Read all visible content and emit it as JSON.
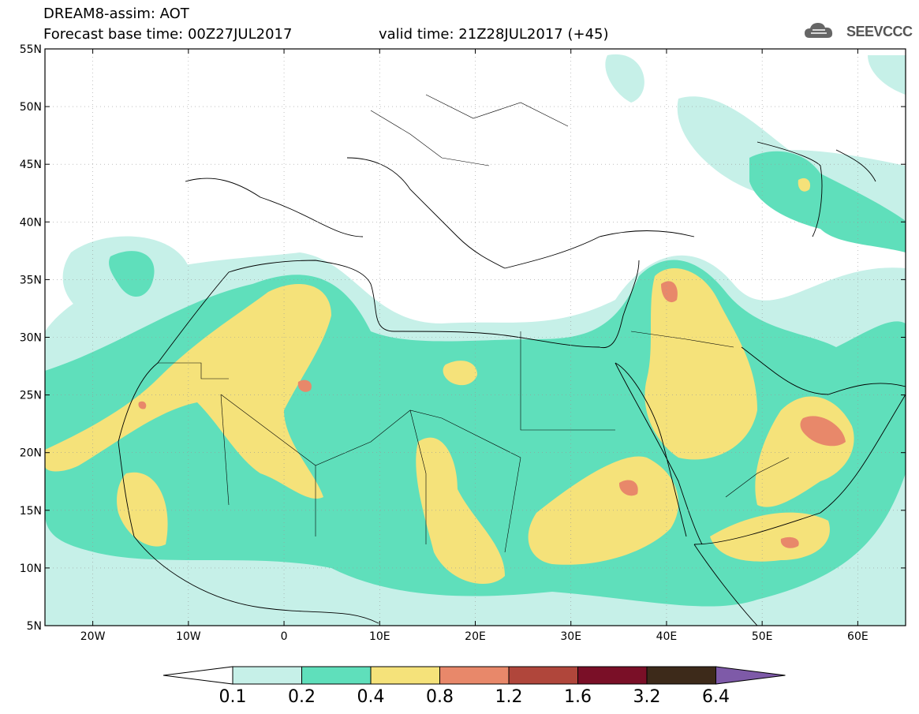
{
  "header": {
    "title": "DREAM8-assim: AOT",
    "forecast_base": "Forecast base time: 00Z27JUL2017",
    "valid_time": "valid time: 21Z28JUL2017 (+45)",
    "logo_text": "SEEVCCC",
    "logo_icon": "cloud-icon"
  },
  "axes": {
    "lat_labels": [
      "55N",
      "50N",
      "45N",
      "40N",
      "35N",
      "30N",
      "25N",
      "20N",
      "15N",
      "10N",
      "5N"
    ],
    "lon_labels": [
      "20W",
      "10W",
      "0",
      "10E",
      "20E",
      "30E",
      "40E",
      "50E",
      "60E"
    ],
    "lat_range": [
      5,
      55
    ],
    "lon_range": [
      -25,
      65
    ]
  },
  "colorbar": {
    "labels": [
      "0.1",
      "0.2",
      "0.4",
      "0.8",
      "1.2",
      "1.6",
      "3.2",
      "6.4"
    ],
    "colors": [
      "#ffffff",
      "#c6f0e8",
      "#5fdfbb",
      "#f5e27a",
      "#e8886a",
      "#b0463b",
      "#7a0f27",
      "#3d2a1a",
      "#7e5aa8"
    ]
  }
}
